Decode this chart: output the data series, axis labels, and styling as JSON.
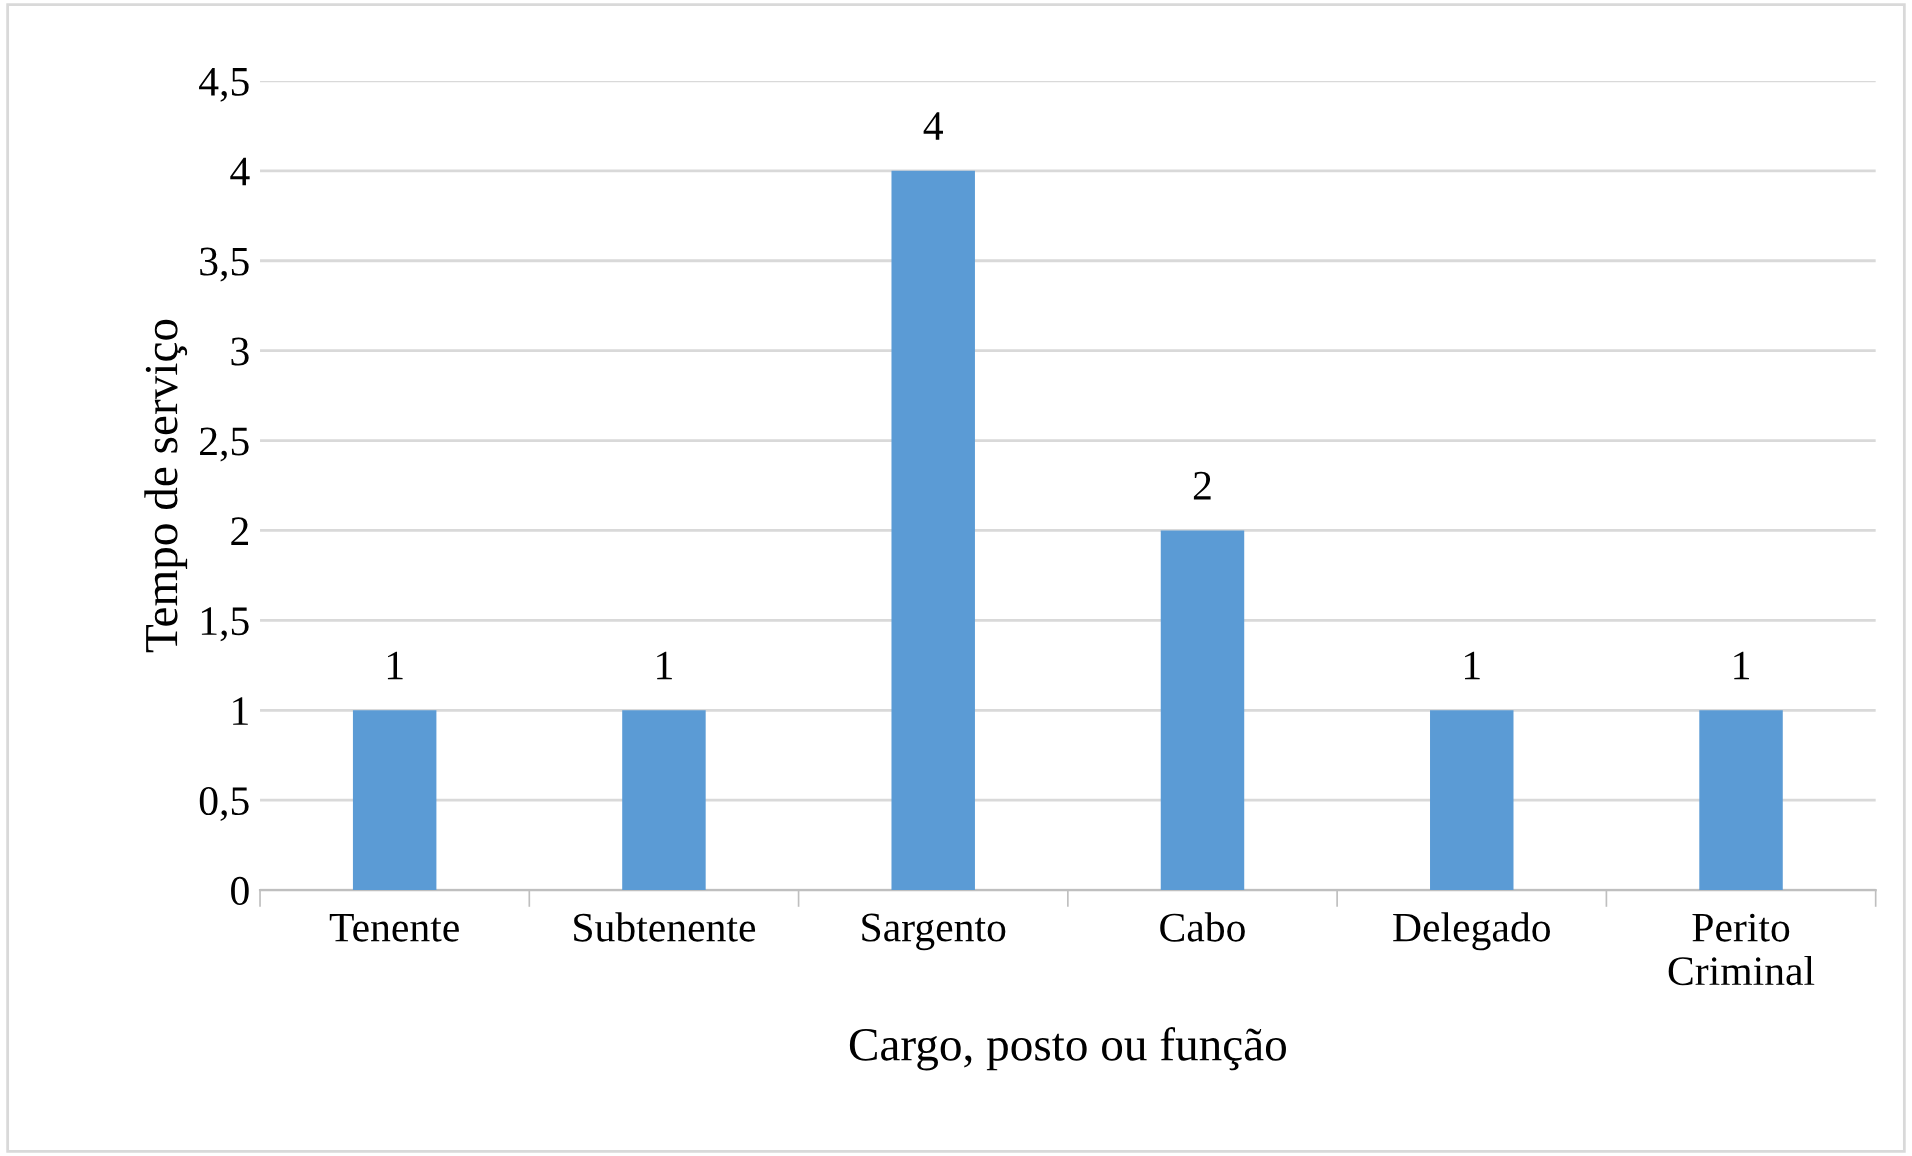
{
  "chart_data": {
    "type": "bar",
    "xlabel": "Cargo, posto ou função",
    "ylabel": "Tempo de serviço",
    "categories": [
      "Tenente",
      "Subtenente",
      "Sargento",
      "Cabo",
      "Delegado",
      "Perito\nCriminal"
    ],
    "values": [
      1,
      1,
      4,
      2,
      1,
      1
    ],
    "color": "#5b9bd5",
    "ylim": [
      0,
      4.5
    ],
    "yticks": [
      0,
      {
        "value": 0.5,
        "label": "0,5"
      },
      1,
      {
        "value": 1.5,
        "label": "1,5"
      },
      2,
      {
        "value": 2.5,
        "label": "2,5"
      },
      3,
      {
        "value": 3.5,
        "label": "3,5"
      },
      4,
      {
        "value": 4.5,
        "label": "4,5"
      }
    ],
    "grid": "y",
    "data_labels": true,
    "legend": false
  }
}
